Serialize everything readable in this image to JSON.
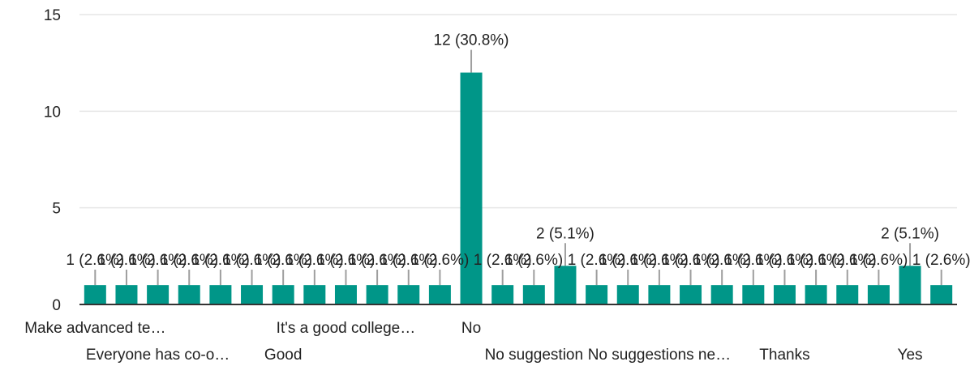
{
  "chart_data": {
    "type": "bar",
    "ylim": [
      0,
      15
    ],
    "yticks": [
      0,
      5,
      10,
      15
    ],
    "grid": true,
    "bar_color": "#009688",
    "categories": [
      "Make advanced te…",
      "",
      "Everyone has co-o…",
      "",
      "",
      "",
      "Good",
      "",
      "It's a good college…",
      "",
      "",
      "",
      "No",
      "",
      "No suggestion",
      "",
      "",
      "",
      "No suggestions ne…",
      "",
      "",
      "",
      "Thanks",
      "",
      "",
      "",
      "Yes",
      ""
    ],
    "values": [
      1,
      1,
      1,
      1,
      1,
      1,
      1,
      1,
      1,
      1,
      1,
      1,
      12,
      1,
      1,
      2,
      1,
      1,
      1,
      1,
      1,
      1,
      1,
      1,
      1,
      1,
      2,
      1
    ],
    "data_labels": [
      "1 (2.6%)",
      "1 (2.6%)",
      "1 (2.6%)",
      "1 (2.6%)",
      "1 (2.6%)",
      "1 (2.6%)",
      "1 (2.6%)",
      "1 (2.6%)",
      "1 (2.6%)",
      "1 (2.6%)",
      "1 (2.6%)",
      "1 (2.6%)",
      "12 (30.8%)",
      "1 (2.6%)",
      "1 (2.6%)",
      "2 (5.1%)",
      "1 (2.6%)",
      "1 (2.6%)",
      "1 (2.6%)",
      "1 (2.6%)",
      "1 (2.6%)",
      "1 (2.6%)",
      "1 (2.6%)",
      "1 (2.6%)",
      "1 (2.6%)",
      "1 (2.6%)",
      "2 (5.1%)",
      "1 (2.6%)"
    ]
  }
}
